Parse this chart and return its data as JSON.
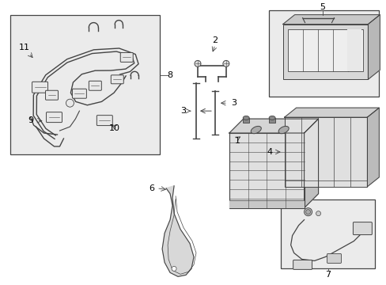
{
  "bg_color": "#ffffff",
  "line_color": "#444444",
  "gray_fill": "#e8e8e8",
  "gray_dark": "#cccccc",
  "gray_light": "#f0f0f0",
  "box_fill": "#ebebeb",
  "fig_width": 4.89,
  "fig_height": 3.6,
  "dpi": 100
}
